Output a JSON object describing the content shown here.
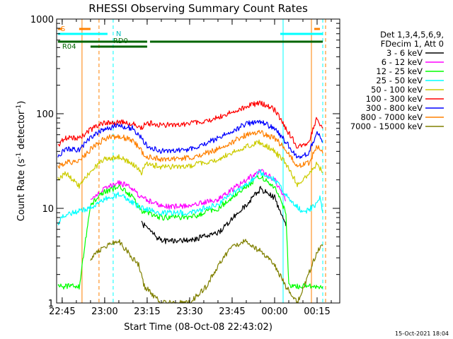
{
  "chart_data": {
    "type": "line",
    "title": "RHESSI Observing Summary Count Rates",
    "xlabel": "Start Time (08-Oct-08 22:43:02)",
    "ylabel_parts": [
      "Count Rate (s",
      "-1",
      " detector",
      "-1",
      ")"
    ],
    "yscale": "log",
    "ylim": [
      1,
      1000
    ],
    "xlim": [
      "22:43:02",
      "00:23:00"
    ],
    "x_ticks": [
      "22:45",
      "23:00",
      "23:15",
      "23:30",
      "23:45",
      "00:00",
      "00:15"
    ],
    "y_ticks": [
      "1",
      "10",
      "100",
      "1000"
    ],
    "legend_header": [
      "Det 1,3,4,5,6,9,",
      "FDecim 1, Att 0"
    ],
    "series": [
      {
        "name": "3 - 6 keV",
        "color": "#000000",
        "x": [
          "23:13",
          "23:20",
          "23:30",
          "23:40",
          "23:50",
          "23:55",
          "00:00",
          "00:04"
        ],
        "values": [
          7,
          4.5,
          4.6,
          5.5,
          11,
          16,
          13,
          6.5
        ]
      },
      {
        "name": "6 - 12 keV",
        "color": "#ff00ff",
        "x": [
          "22:55",
          "23:00",
          "23:05",
          "23:10",
          "23:13",
          "23:20",
          "23:30",
          "23:40",
          "23:50",
          "23:55",
          "00:00",
          "00:04"
        ],
        "values": [
          12,
          16,
          19,
          16,
          13,
          10.5,
          10.5,
          12.5,
          20,
          25,
          20,
          12
        ]
      },
      {
        "name": "12 - 25 keV",
        "color": "#00ff00",
        "x": [
          "22:43:30",
          "22:46",
          "22:47",
          "22:51",
          "22:55",
          "23:00",
          "23:05",
          "23:10",
          "23:13",
          "23:20",
          "23:30",
          "23:40",
          "23:50",
          "23:55",
          "00:00",
          "00:04",
          "00:05",
          "00:10",
          "00:16",
          "00:17"
        ],
        "values": [
          1.5,
          1.5,
          1.5,
          1.5,
          11,
          15,
          17,
          13,
          9.5,
          8,
          8,
          10,
          17,
          22,
          17,
          9,
          1.5,
          1.5,
          1.5,
          1.5
        ]
      },
      {
        "name": "25 - 50 keV",
        "color": "#00ffff",
        "x": [
          "22:43:30",
          "22:46",
          "22:55",
          "23:00",
          "23:05",
          "23:10",
          "23:13",
          "23:20",
          "23:30",
          "23:40",
          "23:50",
          "23:55",
          "00:00",
          "00:04",
          "00:10",
          "00:15",
          "00:16",
          "00:17"
        ],
        "values": [
          7,
          8.5,
          10,
          12.5,
          14,
          11.5,
          10,
          9,
          9,
          11,
          18,
          24,
          20,
          14,
          9,
          11,
          13,
          9
        ]
      },
      {
        "name": "50 - 100 keV",
        "color": "#cccc00",
        "x": [
          "22:43:30",
          "22:46",
          "22:51",
          "22:55",
          "23:00",
          "23:05",
          "23:10",
          "23:13",
          "23:15",
          "23:20",
          "23:30",
          "23:40",
          "23:50",
          "23:55",
          "00:00",
          "00:04",
          "00:08",
          "00:12",
          "00:15",
          "00:17"
        ],
        "values": [
          20,
          24,
          17,
          25,
          33,
          35,
          29,
          24,
          30,
          27,
          28,
          33,
          45,
          50,
          40,
          30,
          18,
          23,
          30,
          24
        ]
      },
      {
        "name": "100 - 300 keV",
        "color": "#ff0000",
        "x": [
          "22:43:30",
          "22:46",
          "22:51",
          "22:55",
          "23:00",
          "23:05",
          "23:10",
          "23:13",
          "23:15",
          "23:20",
          "23:30",
          "23:40",
          "23:50",
          "23:55",
          "00:00",
          "00:04",
          "00:08",
          "00:12",
          "00:15",
          "00:17"
        ],
        "values": [
          46,
          55,
          55,
          68,
          80,
          82,
          78,
          72,
          80,
          75,
          78,
          90,
          120,
          130,
          110,
          70,
          45,
          50,
          90,
          70
        ]
      },
      {
        "name": "300 - 800 keV",
        "color": "#0000ff",
        "x": [
          "22:43:30",
          "22:46",
          "22:51",
          "22:55",
          "23:00",
          "23:05",
          "23:10",
          "23:13",
          "23:15",
          "23:20",
          "23:30",
          "23:40",
          "23:50",
          "23:55",
          "00:00",
          "00:04",
          "00:08",
          "00:12",
          "00:15",
          "00:17"
        ],
        "values": [
          36,
          42,
          42,
          55,
          70,
          75,
          70,
          55,
          45,
          40,
          42,
          55,
          78,
          82,
          70,
          50,
          35,
          38,
          65,
          50
        ]
      },
      {
        "name": "800 - 7000 keV",
        "color": "#ff8000",
        "x": [
          "22:43:30",
          "22:46",
          "22:51",
          "22:55",
          "23:00",
          "23:05",
          "23:10",
          "23:13",
          "23:15",
          "23:20",
          "23:30",
          "23:40",
          "23:50",
          "23:55",
          "00:00",
          "00:04",
          "00:08",
          "00:12",
          "00:15",
          "00:17"
        ],
        "values": [
          27,
          31,
          31,
          42,
          55,
          58,
          52,
          40,
          35,
          33,
          34,
          42,
          60,
          63,
          55,
          42,
          28,
          30,
          45,
          38
        ]
      },
      {
        "name": "7000 - 15000 keV",
        "color": "#808000",
        "x": [
          "22:55",
          "23:00",
          "23:05",
          "23:08",
          "23:12",
          "23:14",
          "23:20",
          "23:30",
          "23:36",
          "23:40",
          "23:45",
          "23:50",
          "23:55",
          "00:00",
          "00:04",
          "00:08",
          "00:15",
          "00:17"
        ],
        "values": [
          3,
          4,
          4.5,
          3.5,
          2.5,
          1.5,
          1,
          1,
          1.5,
          2.5,
          4,
          4.5,
          3.5,
          2.5,
          1.5,
          1,
          3.5,
          4
        ]
      }
    ],
    "state_bars": [
      {
        "label": "S",
        "color": "#ff8000",
        "segments": [
          [
            "22:43:30",
            "22:45"
          ],
          [
            "22:51",
            "22:55"
          ],
          [
            "00:14",
            "00:16"
          ]
        ]
      },
      {
        "label": "N",
        "color": "#00ffff",
        "segments": [
          [
            "22:43:30",
            "23:01"
          ],
          [
            "00:02",
            "00:17"
          ]
        ]
      },
      {
        "label": "RD0",
        "color": "#006400",
        "segments": [
          [
            "22:43:30",
            "23:15"
          ],
          [
            "23:16",
            "00:17"
          ]
        ]
      },
      {
        "label": "R04",
        "color": "#006400",
        "segments": [
          [
            "22:55",
            "23:15"
          ]
        ]
      }
    ],
    "vlines": [
      {
        "x": "22:52",
        "color": "#ff8000",
        "style": "solid"
      },
      {
        "x": "22:58",
        "color": "#ff8000",
        "style": "dashed"
      },
      {
        "x": "23:03",
        "color": "#00ffff",
        "style": "dashed"
      },
      {
        "x": "00:03",
        "color": "#00ffff",
        "style": "solid"
      },
      {
        "x": "00:13",
        "color": "#ff8000",
        "style": "solid"
      },
      {
        "x": "00:17",
        "color": "#00ffff",
        "style": "dashed"
      },
      {
        "x": "00:18",
        "color": "#ff8000",
        "style": "dashed"
      }
    ],
    "grid": false,
    "legend_position": "right"
  },
  "footer": {
    "timestamp": "15-Oct-2021 18:04"
  }
}
